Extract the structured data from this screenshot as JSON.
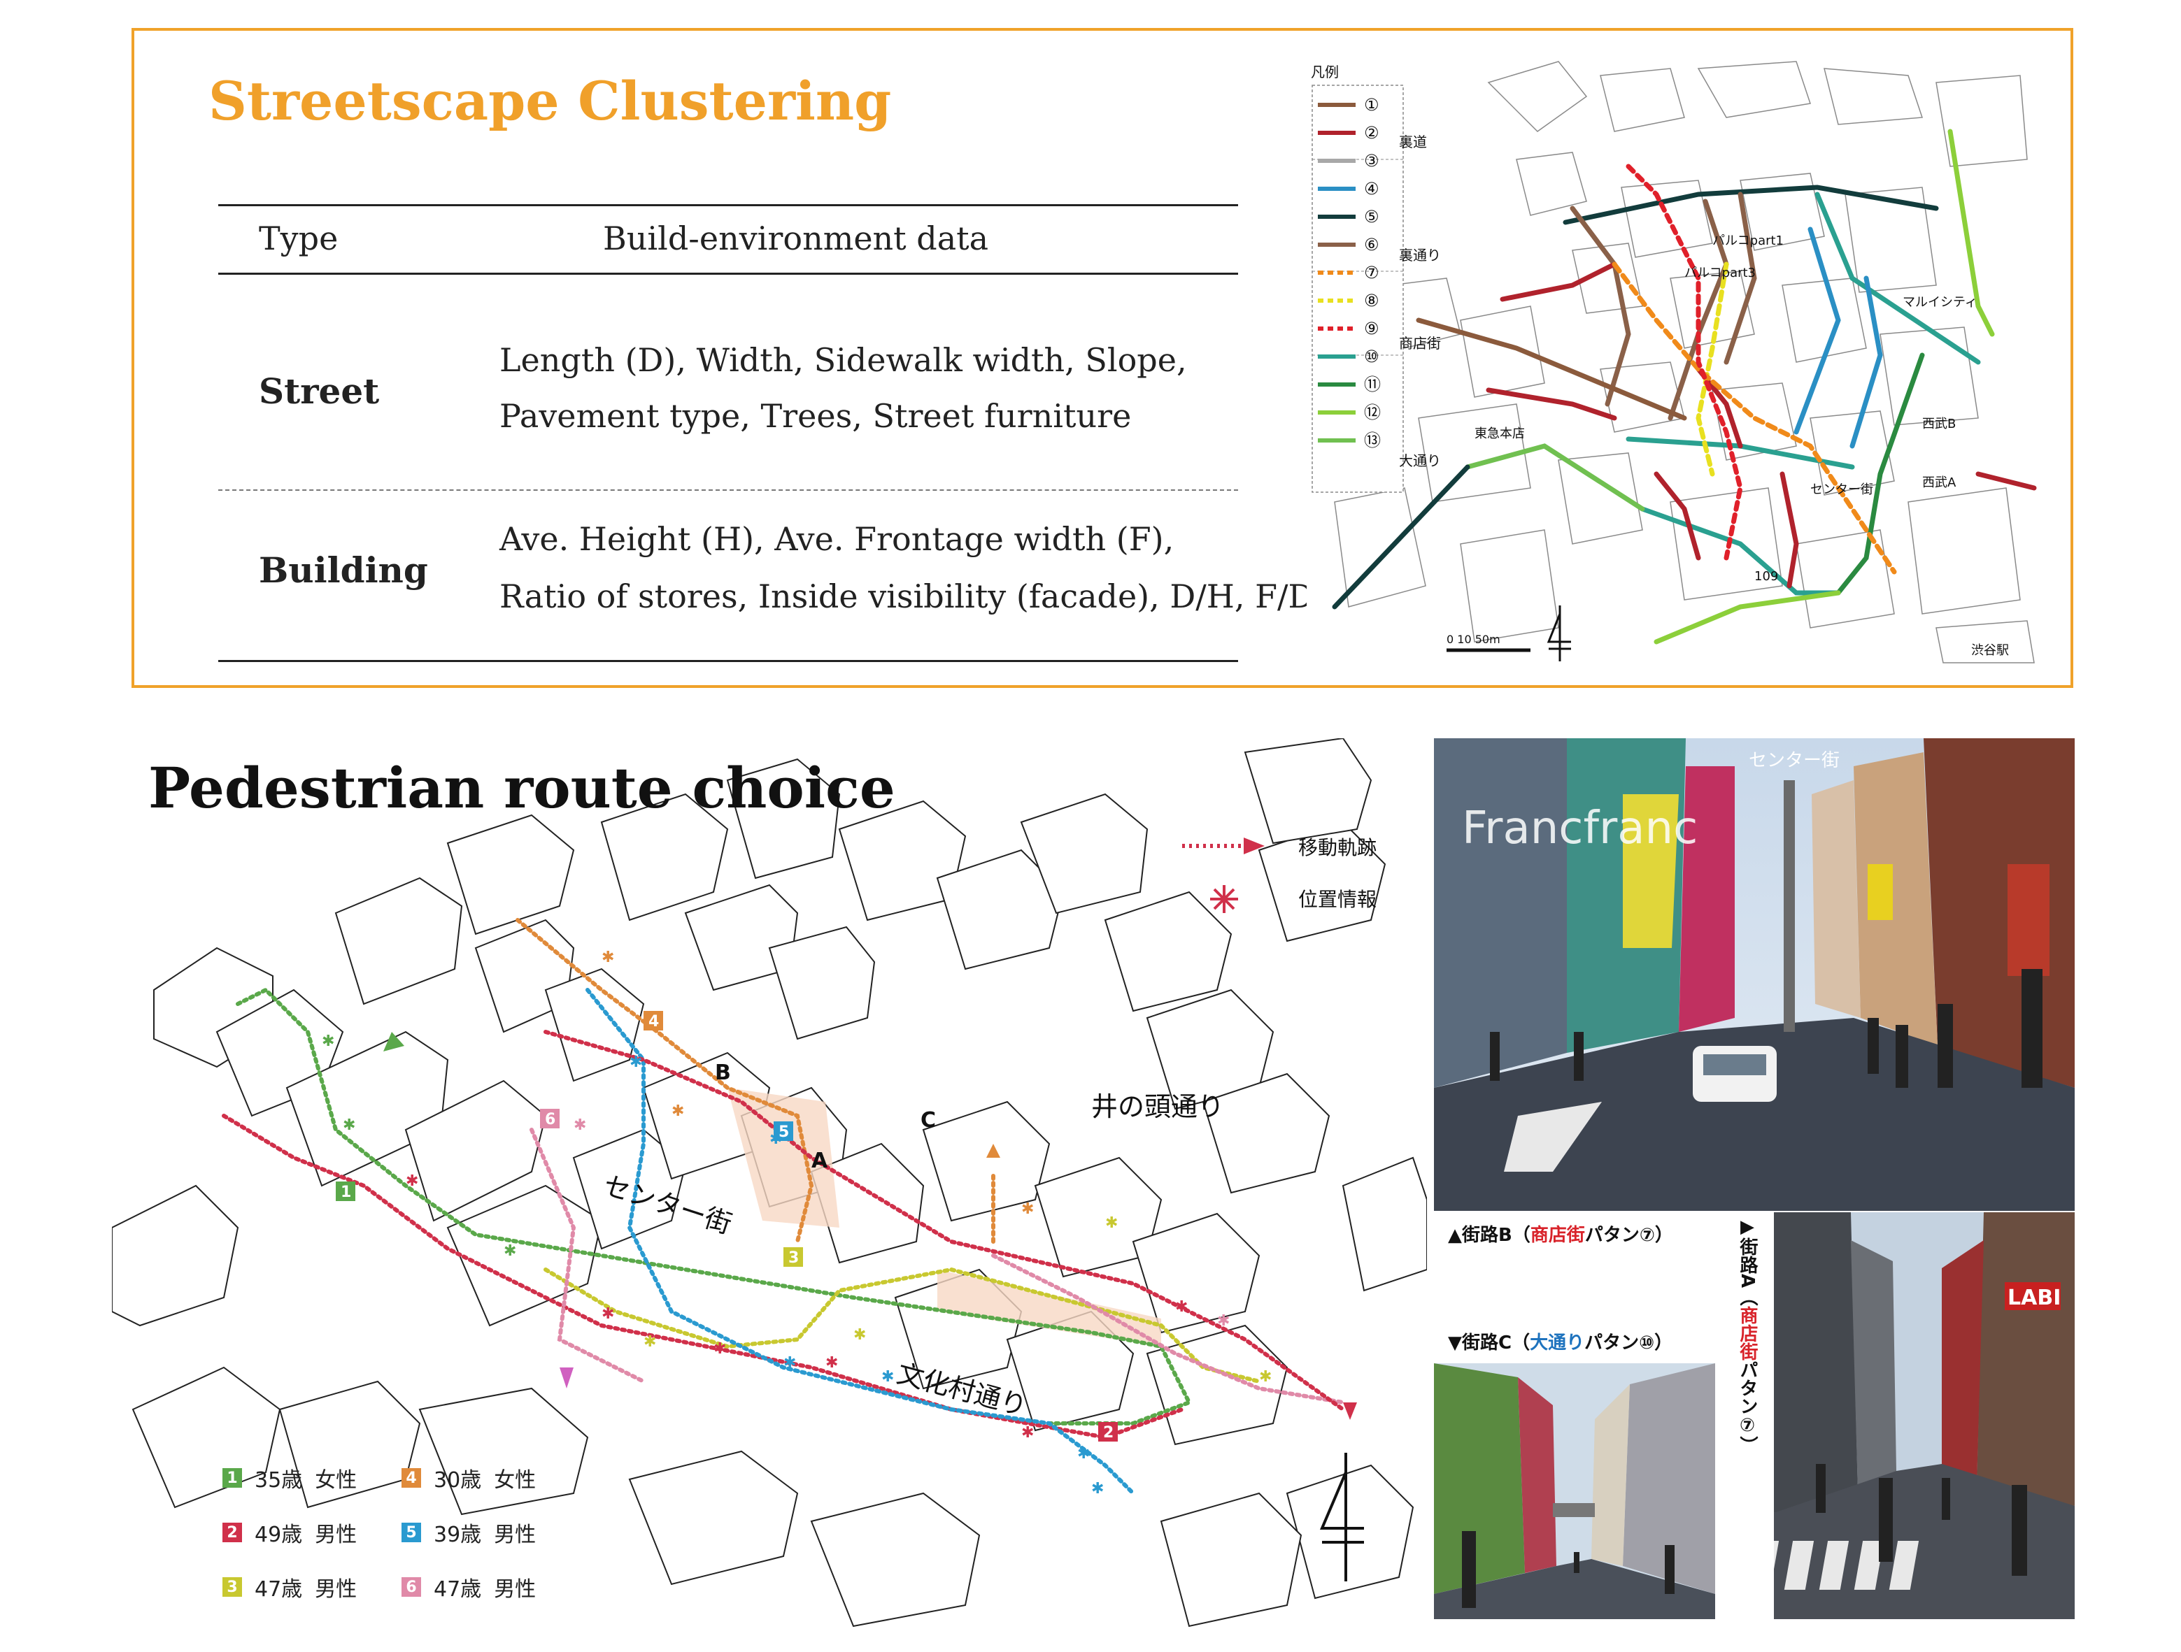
{
  "streetscape": {
    "title": "Streetscape Clustering",
    "table": {
      "header": {
        "type": "Type",
        "data": "Build-environment data"
      },
      "rows": [
        {
          "type": "Street",
          "line1": "Length (D), Width, Sidewalk width, Slope,",
          "line2": "Pavement type, Trees, Street furniture"
        },
        {
          "type": "Building",
          "line1": "Ave. Height (H),   Ave. Frontage width (F),",
          "line2": "Ratio of stores, Inside visibility (facade), D/H, F/D"
        }
      ]
    },
    "map": {
      "legend_title": "凡例",
      "legend": [
        {
          "num": "①",
          "color": "#8b5a3c",
          "dash": false
        },
        {
          "num": "②",
          "color": "#b0222c",
          "dash": false
        },
        {
          "num": "③",
          "color": "#a8a8a8",
          "dash": false
        },
        {
          "num": "④",
          "color": "#2a8fc4",
          "dash": false
        },
        {
          "num": "⑤",
          "color": "#123c3c",
          "dash": false
        },
        {
          "num": "⑥",
          "color": "#8a6048",
          "dash": false
        },
        {
          "num": "⑦",
          "color": "#f08a1a",
          "dash": true
        },
        {
          "num": "⑧",
          "color": "#e8e020",
          "dash": true
        },
        {
          "num": "⑨",
          "color": "#e0202a",
          "dash": true
        },
        {
          "num": "⑩",
          "color": "#2aa090",
          "dash": false
        },
        {
          "num": "⑪",
          "color": "#2a8a40",
          "dash": false
        },
        {
          "num": "⑫",
          "color": "#8ccf3a",
          "dash": false
        },
        {
          "num": "⑬",
          "color": "#70c050",
          "dash": false
        }
      ],
      "group_labels": [
        "裏道",
        "裏通り",
        "商店街",
        "大通り"
      ],
      "places": [
        "パルコpart1",
        "パルコpart3",
        "マルイシティ",
        "西武B",
        "西武A",
        "東急本店",
        "センター街",
        "109",
        "渋谷駅"
      ],
      "scale_label": "0 10   50m"
    }
  },
  "pedestrian": {
    "title": "Pedestrian route choice",
    "map_legend": {
      "track": "移動軌跡",
      "position": "位置情報"
    },
    "street_labels": {
      "center": "センター街",
      "inokashira": "井の頭通り",
      "bunkamura": "文化村通り"
    },
    "points": [
      "A",
      "B",
      "C"
    ],
    "subjects": [
      {
        "id": "1",
        "age": "35歳",
        "gender": "女性",
        "color": "#5aa84a"
      },
      {
        "id": "2",
        "age": "49歳",
        "gender": "男性",
        "color": "#d0304a"
      },
      {
        "id": "3",
        "age": "47歳",
        "gender": "男性",
        "color": "#c8c830"
      },
      {
        "id": "4",
        "age": "30歳",
        "gender": "女性",
        "color": "#e08a3a"
      },
      {
        "id": "5",
        "age": "39歳",
        "gender": "男性",
        "color": "#2a9ad0"
      },
      {
        "id": "6",
        "age": "47歳",
        "gender": "男性",
        "color": "#e08aa8"
      }
    ],
    "captions": {
      "b_prefix": "▲街路B（",
      "b_hl": "商店街",
      "b_suffix": "パタン⑦）",
      "c_prefix": "▼街路C（",
      "c_hl": "大通り",
      "c_suffix": "パタン⑩）",
      "a_prefix": "▶街路A（",
      "a_hl": "商店街",
      "a_suffix": "パタン⑦）"
    },
    "photo_signs": {
      "francfranc": "Francfranc",
      "center": "センター街",
      "labi": "LABI"
    }
  }
}
